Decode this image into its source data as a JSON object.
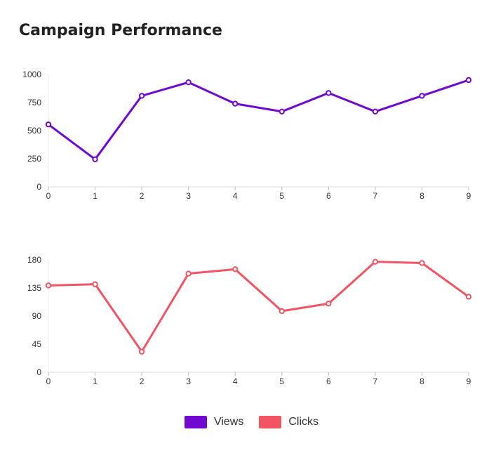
{
  "title": "Campaign Performance",
  "chart_data": [
    {
      "type": "line",
      "x": [
        0,
        1,
        2,
        3,
        4,
        5,
        6,
        7,
        8,
        9
      ],
      "series": [
        {
          "name": "Views",
          "color": "#7108d2",
          "values": [
            555,
            245,
            810,
            930,
            740,
            670,
            835,
            670,
            810,
            950
          ]
        }
      ],
      "yticks": [
        0,
        250,
        500,
        750,
        1000
      ],
      "ylim": [
        0,
        1000
      ],
      "grid": false
    },
    {
      "type": "line",
      "x": [
        0,
        1,
        2,
        3,
        4,
        5,
        6,
        7,
        8,
        9
      ],
      "series": [
        {
          "name": "Clicks",
          "color": "#f25461",
          "values": [
            139,
            141,
            33,
            158,
            165,
            98,
            110,
            177,
            175,
            121
          ]
        }
      ],
      "yticks": [
        0,
        45,
        90,
        135,
        180
      ],
      "ylim": [
        0,
        180
      ],
      "grid": false
    }
  ],
  "legend": {
    "placement": "bottom",
    "items": [
      {
        "label": "Views",
        "color": "#7108d2"
      },
      {
        "label": "Clicks",
        "color": "#f25461"
      }
    ]
  }
}
